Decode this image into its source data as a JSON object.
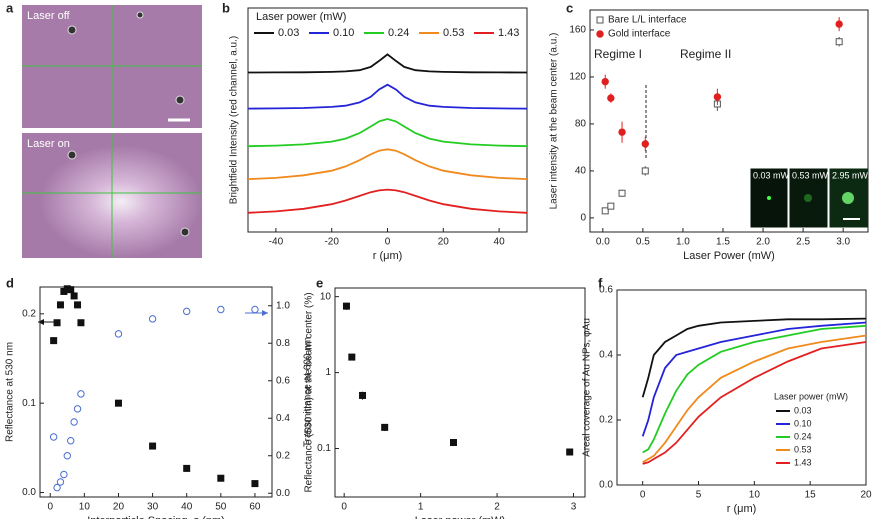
{
  "panel_letters": [
    "a",
    "b",
    "c",
    "d",
    "e",
    "f"
  ],
  "image_panel": {
    "labels": [
      "Laser off",
      "Laser on"
    ]
  },
  "chart_data": [
    {
      "type": "line",
      "x_label": "r (μm)",
      "y_label": "Brightfield Intensity (red channel, a.u.)",
      "legend_title": "Laser power (mW)",
      "legend": "top",
      "x": [
        -50,
        -40,
        -30,
        -20,
        -15,
        -10,
        -6,
        -3,
        0,
        3,
        6,
        10,
        15,
        20,
        30,
        40,
        50
      ],
      "xlim": [
        -50,
        50
      ],
      "xticks": [
        -40,
        -20,
        0,
        20,
        40
      ],
      "ylim": [
        0,
        111
      ],
      "series": [
        {
          "name": "0.03",
          "color": "#111111",
          "values": [
            79.06,
            79.09,
            79.16,
            79.35,
            79.6,
            80.2,
            81.8,
            84.8,
            88,
            84.8,
            81.8,
            80.2,
            79.6,
            79.35,
            79.16,
            79.09,
            79.06
          ]
        },
        {
          "name": "0.10",
          "color": "#2424d8",
          "values": [
            61.17,
            61.27,
            61.46,
            62.0,
            62.6,
            64.2,
            67,
            70.6,
            73,
            70.6,
            67,
            64.2,
            62.6,
            62.0,
            61.46,
            61.27,
            61.17
          ]
        },
        {
          "name": "0.24",
          "color": "#22cc22",
          "values": [
            42.5,
            42.8,
            43.4,
            44.8,
            46.3,
            49,
            52.3,
            54.8,
            56,
            54.8,
            52.3,
            49,
            46.3,
            44.8,
            43.4,
            42.8,
            42.5
          ]
        },
        {
          "name": "0.53",
          "color": "#f08a1c",
          "values": [
            26.2,
            26.8,
            28.1,
            30.4,
            32.5,
            35.6,
            38.5,
            40.3,
            41,
            40.3,
            38.5,
            35.6,
            32.5,
            30.4,
            28.1,
            26.8,
            26.2
          ]
        },
        {
          "name": "1.43",
          "color": "#e22020",
          "values": [
            9.5,
            10.2,
            11.5,
            13.8,
            15.6,
            17.9,
            19.7,
            20.6,
            21,
            20.6,
            19.7,
            17.9,
            15.6,
            13.8,
            11.5,
            10.2,
            9.5
          ]
        }
      ]
    },
    {
      "type": "scatter",
      "x_label": "Laser Power (mW)",
      "y_label": "Laser intensity at the beam center (a.u.)",
      "legend": "upper left",
      "annotations": [
        "Regime I",
        "Regime II"
      ],
      "inset_labels": [
        "0.03 mW",
        "0.53 mW",
        "2.95 mW"
      ],
      "xlim": [
        -0.16,
        3.31
      ],
      "xticks": [
        {
          "value": 0,
          "label": "0.0"
        },
        0.5,
        {
          "value": 1,
          "label": "1.0"
        },
        1.5,
        {
          "value": 2,
          "label": "2.0"
        },
        2.5,
        {
          "value": 3,
          "label": "3.0"
        }
      ],
      "ylim": [
        -12,
        177
      ],
      "yticks": [
        0,
        40,
        80,
        120,
        160
      ],
      "series": [
        {
          "name": "Bare L/L interface",
          "color": "#555555",
          "marker": "open-square",
          "x": [
            0.03,
            0.1,
            0.24,
            0.53,
            1.43,
            2.95
          ],
          "values": [
            6,
            10,
            21,
            40,
            97,
            150
          ],
          "errors": [
            2,
            2,
            3,
            4,
            6,
            4
          ]
        },
        {
          "name": "Gold interface",
          "color": "#e02020",
          "marker": "filled-circle",
          "x": [
            0.03,
            0.1,
            0.24,
            0.53,
            1.43,
            2.95
          ],
          "values": [
            116,
            102,
            73,
            63,
            103,
            165
          ],
          "errors": [
            6,
            4,
            9,
            6,
            7,
            6
          ]
        }
      ]
    },
    {
      "type": "scatter",
      "x_label": "Interparticle Spacing, s (nm)",
      "y_label": "Reflectance at 530 nm",
      "y2_label": "Transmittance at 600 nm",
      "xlim": [
        -3,
        65
      ],
      "xticks": [
        0,
        10,
        20,
        30,
        40,
        50,
        60
      ],
      "ylim": [
        -0.005,
        0.23
      ],
      "yticks": [
        {
          "value": 0,
          "label": "0.0"
        },
        0.1,
        0.2
      ],
      "y2lim": [
        -0.02,
        1.1
      ],
      "y2ticks": [
        {
          "value": 0,
          "label": "0.0"
        },
        0.2,
        0.4,
        0.6,
        0.8,
        {
          "value": 1,
          "label": "1.0"
        }
      ],
      "series": [
        {
          "color": "#111111",
          "marker": "filled-square",
          "x": [
            1,
            2,
            3,
            4,
            5,
            6,
            7,
            8,
            9,
            20,
            30,
            40,
            50,
            60
          ],
          "values": [
            0.17,
            0.19,
            0.21,
            0.225,
            0.228,
            0.227,
            0.22,
            0.21,
            0.19,
            0.1,
            0.052,
            0.027,
            0.016,
            0.01
          ]
        },
        {
          "color": "#4a6fd0",
          "marker": "open-circle",
          "axis": "y2",
          "x": [
            1,
            2,
            3,
            4,
            5,
            6,
            7,
            8,
            9,
            20,
            30,
            40,
            50,
            60
          ],
          "values": [
            0.3,
            0.03,
            0.06,
            0.1,
            0.2,
            0.28,
            0.38,
            0.45,
            0.53,
            0.85,
            0.93,
            0.97,
            0.98,
            0.98
          ]
        }
      ]
    },
    {
      "type": "scatter",
      "x_label": "Laser power (mW)",
      "y_label": "Reflectance (530 nm) at the beam center (%)",
      "log_y": true,
      "xlim": [
        -0.12,
        3.15
      ],
      "xticks": [
        0,
        1,
        2,
        3
      ],
      "ylim": [
        0.023,
        13
      ],
      "yticks": [
        0.1,
        1,
        10
      ],
      "series": [
        {
          "color": "#111111",
          "marker": "filled-square",
          "x": [
            0.03,
            0.1,
            0.24,
            0.53,
            1.43,
            2.95
          ],
          "values": [
            7.5,
            1.6,
            0.5,
            0.19,
            0.12,
            0.09
          ],
          "errors": [
            0.8,
            0.15,
            0.06,
            0.02,
            0.01,
            0.005
          ]
        }
      ]
    },
    {
      "type": "line",
      "x_label": "r (μm)",
      "y_label": "Areal coverage of Au NPs, φAu",
      "legend_title": "Laser power (mW)",
      "legend": "lower right",
      "x": [
        0,
        0.5,
        1,
        2,
        3,
        4,
        5,
        7,
        10,
        13,
        16,
        20
      ],
      "xlim": [
        -2.3,
        20
      ],
      "xticks": [
        0,
        5,
        10,
        15,
        20
      ],
      "ylim": [
        0,
        0.6
      ],
      "yticks": [
        {
          "value": 0,
          "label": "0.0"
        },
        0.2,
        0.4,
        0.6
      ],
      "series": [
        {
          "name": "0.03",
          "color": "#111111",
          "values": [
            0.27,
            0.33,
            0.4,
            0.44,
            0.46,
            0.48,
            0.49,
            0.5,
            0.505,
            0.51,
            0.51,
            0.512
          ]
        },
        {
          "name": "0.10",
          "color": "#2424d8",
          "values": [
            0.15,
            0.2,
            0.27,
            0.36,
            0.4,
            0.41,
            0.42,
            0.44,
            0.46,
            0.48,
            0.49,
            0.5
          ]
        },
        {
          "name": "0.24",
          "color": "#22cc22",
          "values": [
            0.1,
            0.11,
            0.14,
            0.22,
            0.29,
            0.34,
            0.37,
            0.41,
            0.44,
            0.46,
            0.48,
            0.49
          ]
        },
        {
          "name": "0.53",
          "color": "#f08a1c",
          "values": [
            0.07,
            0.08,
            0.09,
            0.13,
            0.18,
            0.23,
            0.27,
            0.33,
            0.38,
            0.42,
            0.44,
            0.46
          ]
        },
        {
          "name": "1.43",
          "color": "#e22020",
          "values": [
            0.065,
            0.07,
            0.08,
            0.1,
            0.13,
            0.17,
            0.21,
            0.27,
            0.33,
            0.38,
            0.42,
            0.44
          ]
        }
      ]
    }
  ]
}
